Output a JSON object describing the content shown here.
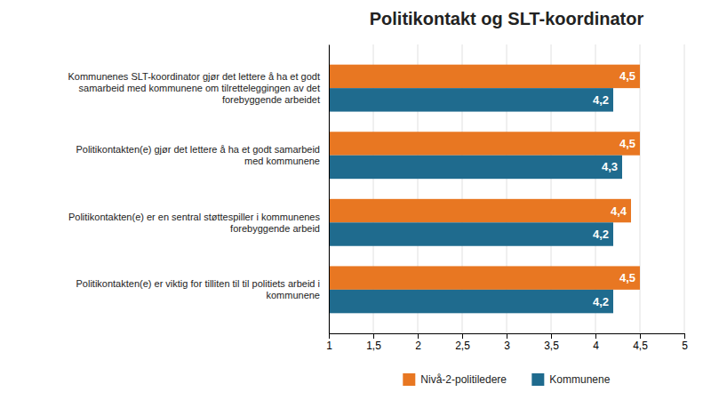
{
  "chart_data": {
    "type": "bar",
    "orientation": "horizontal",
    "title": "Politikontakt og SLT-koordinator",
    "categories": [
      "Politikontakten(e) er viktig for tilliten til til politiets arbeid i\nkommunene",
      "Politikontakten(e) er en sentral støttespiller i kommunenes\nforebyggende arbeid",
      "Politikontakten(e) gjør det lettere å ha et godt samarbeid\nmed kommunene",
      "Kommunenes SLT-koordinator gjør det lettere å ha et godt\nsamarbeid med kommunene om tilretteleggingen av det\nforebyggende arbeidet"
    ],
    "series": [
      {
        "name": "Nivå-2-politiledere",
        "color": "#E87722",
        "values": [
          4.5,
          4.4,
          4.5,
          4.5
        ],
        "value_labels": [
          "4,5",
          "4,4",
          "4,5",
          "4,5"
        ]
      },
      {
        "name": "Kommunene",
        "color": "#1F6B8E",
        "values": [
          4.2,
          4.2,
          4.3,
          4.2
        ],
        "value_labels": [
          "4,2",
          "4,2",
          "4,3",
          "4,2"
        ]
      }
    ],
    "xlim": [
      1,
      5
    ],
    "xticks": [
      1,
      {
        "value": 1.5,
        "label": "1,5"
      },
      2,
      {
        "value": 2.5,
        "label": "2,5"
      },
      3,
      {
        "value": 3.5,
        "label": "3,5"
      },
      4,
      {
        "value": 4.5,
        "label": "4,5"
      },
      5
    ],
    "grid": true,
    "data_labels": true,
    "legend": "bottom"
  }
}
